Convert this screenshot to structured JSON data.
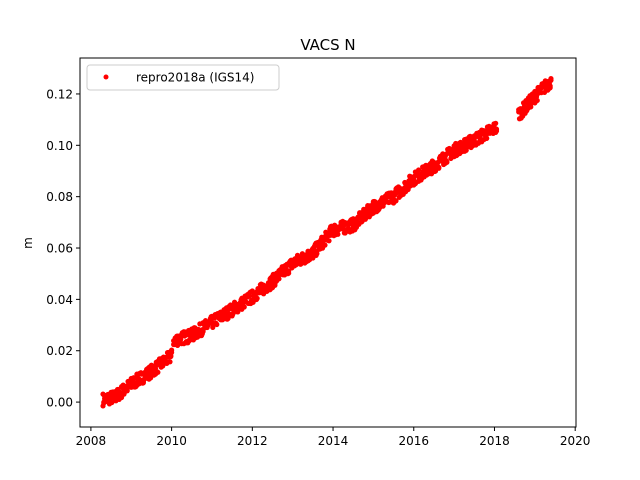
{
  "chart_data": {
    "type": "scatter",
    "title": "VACS N",
    "xlabel": "",
    "ylabel": "m",
    "xlim": [
      2007.73,
      2020.02
    ],
    "ylim": [
      -0.0097,
      0.134
    ],
    "xticks": [
      2008,
      2010,
      2012,
      2014,
      2016,
      2018,
      2020
    ],
    "xtick_labels": [
      "2008",
      "2010",
      "2012",
      "2014",
      "2016",
      "2018",
      "2020"
    ],
    "yticks": [
      0.0,
      0.02,
      0.04,
      0.06,
      0.08,
      0.1,
      0.12
    ],
    "ytick_labels": [
      "0.00",
      "0.02",
      "0.04",
      "0.06",
      "0.08",
      "0.10",
      "0.12"
    ],
    "grid": false,
    "legend": {
      "position": "top-left",
      "entries": [
        "repro2018a (IGS14)"
      ]
    },
    "series": [
      {
        "name": "repro2018a (IGS14)",
        "color": "#ff0000",
        "marker": "dot",
        "scatter_half_width": 0.0025,
        "segments": [
          {
            "x": [
              2008.3,
              2008.6,
              2009.0,
              2009.5,
              2010.0
            ],
            "y": [
              0.001,
              0.002,
              0.007,
              0.012,
              0.018
            ]
          },
          {
            "x": [
              2010.05,
              2010.5,
              2011.0,
              2011.5,
              2012.0,
              2012.5,
              2013.0,
              2013.5,
              2014.0,
              2014.5,
              2015.0,
              2015.5,
              2016.0,
              2016.5,
              2017.0,
              2017.5,
              2018.05
            ],
            "y": [
              0.024,
              0.026,
              0.031,
              0.036,
              0.041,
              0.047,
              0.054,
              0.058,
              0.067,
              0.069,
              0.076,
              0.08,
              0.087,
              0.092,
              0.098,
              0.102,
              0.107
            ]
          },
          {
            "x": [
              2018.6,
              2019.0,
              2019.4
            ],
            "y": [
              0.112,
              0.119,
              0.125
            ]
          }
        ]
      }
    ]
  }
}
